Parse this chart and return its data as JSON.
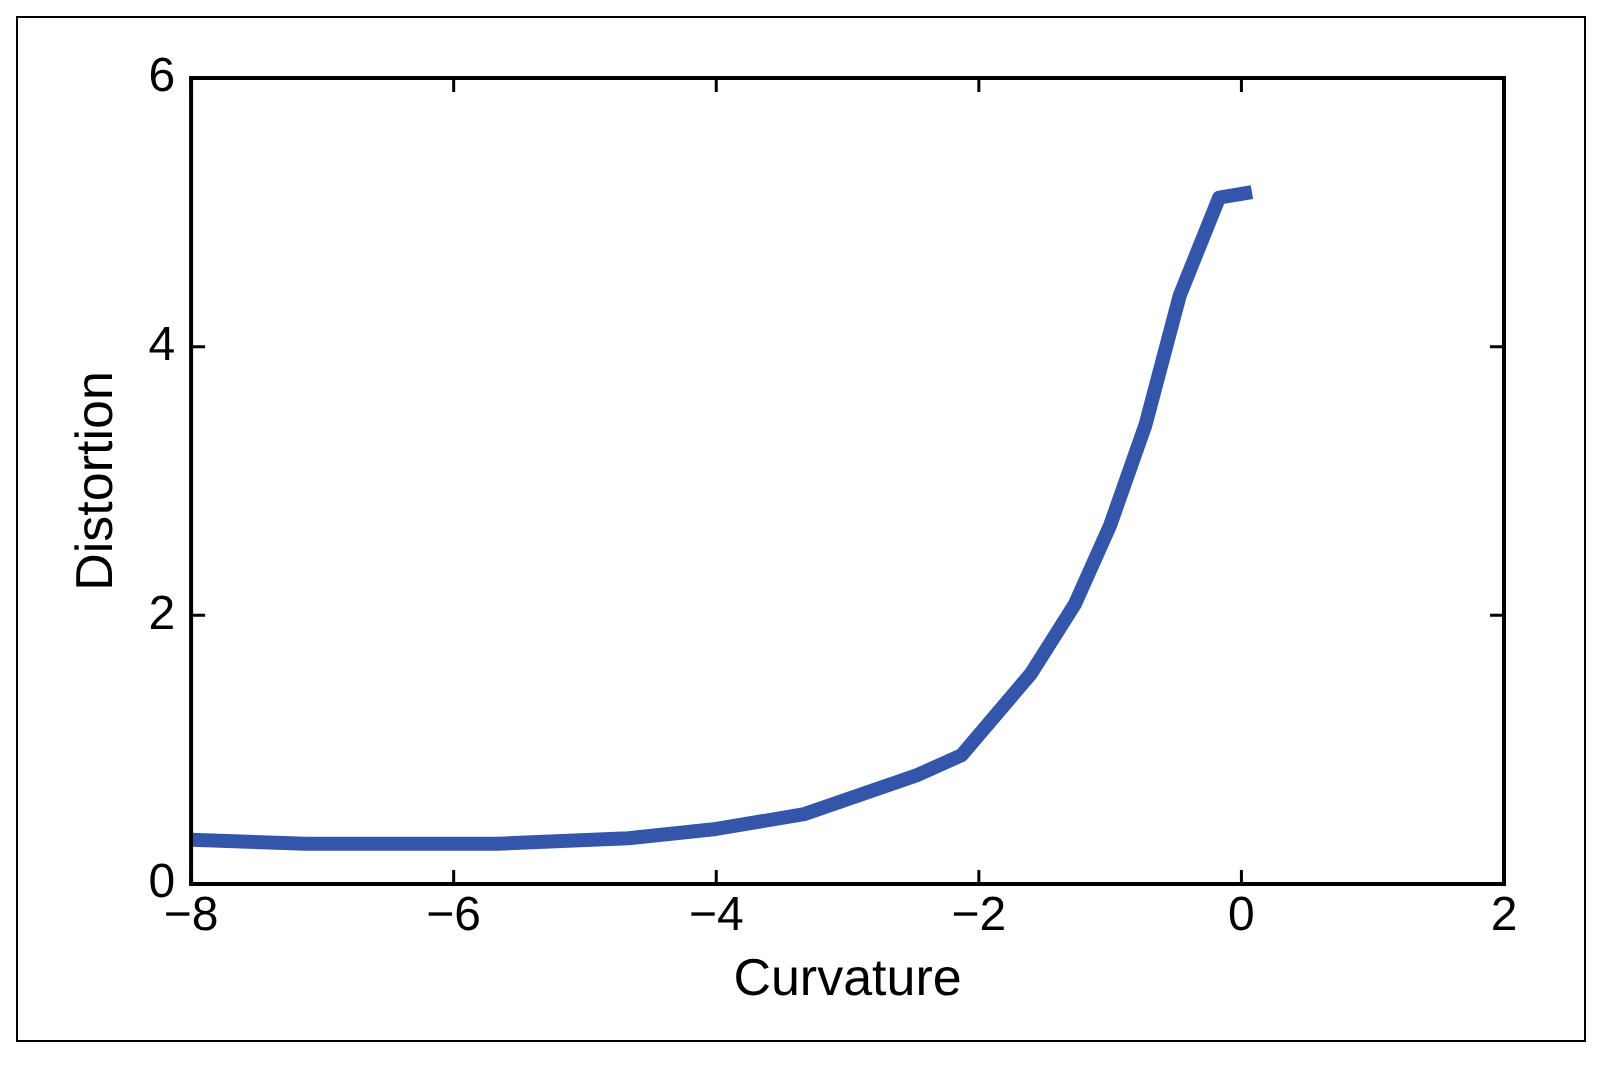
{
  "chart_data": {
    "type": "line",
    "xlabel": "Curvature",
    "ylabel": "Distortion",
    "x": [
      -8,
      -7.13,
      -5.67,
      -4.67,
      -4,
      -3.33,
      -2.47,
      -2.13,
      -1.6,
      -1.27,
      -1,
      -0.73,
      -0.47,
      -0.17,
      0.08
    ],
    "series": [
      {
        "color": "#3355aa",
        "values": [
          0.33,
          0.3,
          0.3,
          0.34,
          0.41,
          0.52,
          0.81,
          0.96,
          1.57,
          2.08,
          2.67,
          3.42,
          4.38,
          5.11,
          5.15
        ]
      }
    ],
    "xlim": [
      -8,
      2
    ],
    "xticks": [
      -8,
      -6,
      -4,
      -2,
      0,
      2
    ],
    "ylim": [
      0,
      6
    ],
    "yticks": [
      0,
      2,
      4,
      6
    ],
    "grid": false,
    "legend": false,
    "marker": "none",
    "line_style": "solid"
  }
}
